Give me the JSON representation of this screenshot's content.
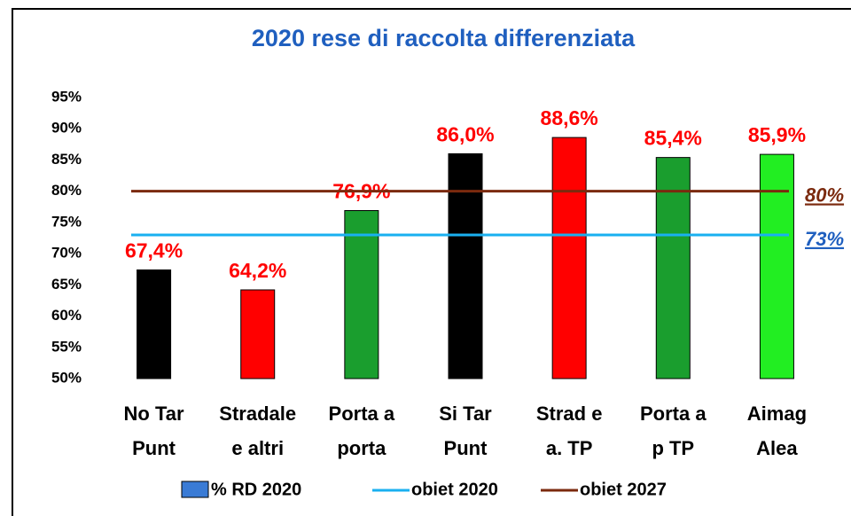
{
  "chart_data": {
    "type": "bar",
    "title": "2020 rese di raccolta differenziata",
    "categories": [
      [
        "No Tar",
        "Punt"
      ],
      [
        "Stradale",
        "e altri"
      ],
      [
        "Porta a",
        "porta"
      ],
      [
        "Si Tar",
        "Punt"
      ],
      [
        "Strad e",
        "a. TP"
      ],
      [
        "Porta a",
        "p TP"
      ],
      [
        "Aimag",
        "Alea"
      ]
    ],
    "series": [
      {
        "name": "% RD 2020",
        "color": "#3a7bd5",
        "values": [
          67.4,
          64.2,
          76.9,
          86.0,
          88.6,
          85.4,
          85.9
        ],
        "value_labels": [
          "67,4%",
          "64,2%",
          "76,9%",
          "86,0%",
          "88,6%",
          "85,4%",
          "85,9%"
        ],
        "bar_colors": [
          "#000000",
          "#ff0000",
          "#1a9e2e",
          "#000000",
          "#ff0000",
          "#1a9e2e",
          "#22ee22"
        ]
      }
    ],
    "reference_lines": [
      {
        "name": "obiet 2020",
        "color": "#1ab0f0",
        "value": 73,
        "label": "73%",
        "label_color": "#1f5fbf"
      },
      {
        "name": "obiet 2027",
        "color": "#7b2a0e",
        "value": 80,
        "label": "80%",
        "label_color": "#7b2a0e"
      }
    ],
    "ylim": [
      50,
      95
    ],
    "yticks": [
      {
        "value": 50,
        "label": "50%"
      },
      {
        "value": 55,
        "label": "55%"
      },
      {
        "value": 60,
        "label": "60%"
      },
      {
        "value": 65,
        "label": "65%"
      },
      {
        "value": 70,
        "label": "70%"
      },
      {
        "value": 75,
        "label": "75%"
      },
      {
        "value": 80,
        "label": "80%"
      },
      {
        "value": 85,
        "label": "85%"
      },
      {
        "value": 90,
        "label": "90%"
      },
      {
        "value": 95,
        "label": "95%"
      }
    ],
    "value_label_color": "#ff0000",
    "legend": "bottom"
  }
}
